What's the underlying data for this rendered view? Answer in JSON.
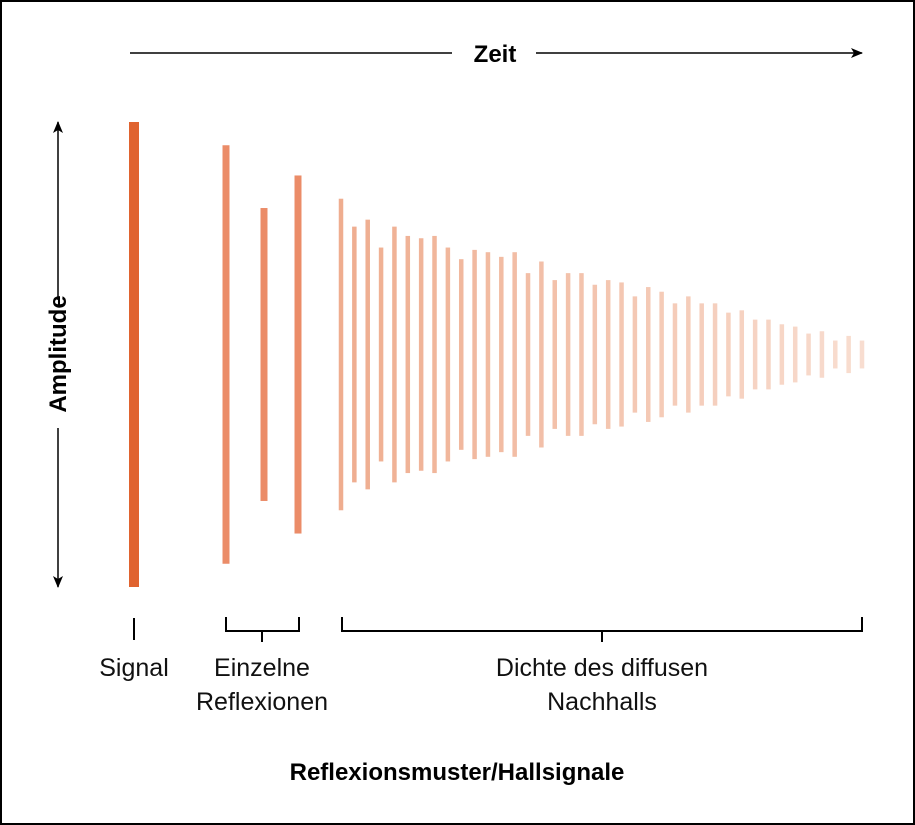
{
  "axes": {
    "time_label": "Zeit",
    "amplitude_label": "Amplitude"
  },
  "groups": {
    "signal_label": "Signal",
    "reflections_label_line1": "Einzelne",
    "reflections_label_line2": "Reflexionen",
    "diffuse_label_line1": "Dichte des diffusen",
    "diffuse_label_line2": "Nachhalls"
  },
  "caption": "Reflexionsmuster/Hallsignale",
  "colors": {
    "signal": "#e0632f",
    "reflections": "#eb8c68",
    "diffuse_start": "#efad8f",
    "diffuse_end": "#f8ddd0"
  },
  "relative_amplitudes": {
    "signal": [
      1.0
    ],
    "early_reflections": [
      0.9,
      0.63,
      0.77
    ],
    "diffuse_reverb": [
      0.67,
      0.55,
      0.58,
      0.46,
      0.55,
      0.51,
      0.5,
      0.51,
      0.46,
      0.41,
      0.45,
      0.44,
      0.42,
      0.44,
      0.35,
      0.4,
      0.32,
      0.35,
      0.35,
      0.3,
      0.32,
      0.31,
      0.25,
      0.29,
      0.27,
      0.22,
      0.25,
      0.22,
      0.22,
      0.18,
      0.19,
      0.15,
      0.15,
      0.13,
      0.12,
      0.09,
      0.1,
      0.06,
      0.08,
      0.06
    ]
  }
}
